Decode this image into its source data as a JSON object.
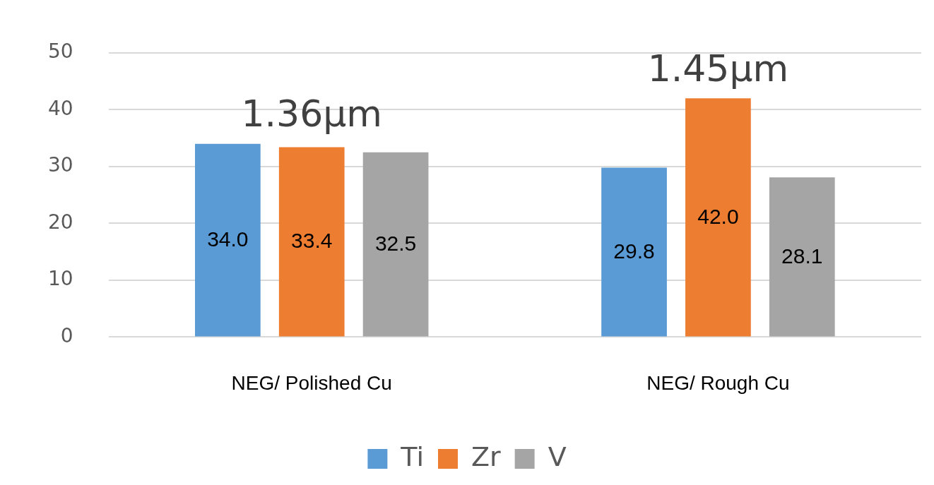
{
  "chart_data": {
    "type": "bar",
    "categories": [
      "NEG/ Polished Cu",
      "NEG/ Rough Cu"
    ],
    "series": [
      {
        "name": "Ti",
        "color": "#5b9bd5",
        "values": [
          34.0,
          29.8
        ],
        "value_labels": [
          "34.0",
          "29.8"
        ]
      },
      {
        "name": "Zr",
        "color": "#ed7d31",
        "values": [
          33.4,
          42.0
        ],
        "value_labels": [
          "33.4",
          "42.0"
        ]
      },
      {
        "name": "V",
        "color": "#a5a5a5",
        "values": [
          32.5,
          28.1
        ],
        "value_labels": [
          "32.5",
          "28.1"
        ]
      }
    ],
    "ylim": [
      0,
      50
    ],
    "yticks": [
      0,
      10,
      20,
      30,
      40,
      50
    ],
    "grid": "y",
    "legend": "bottom",
    "annotations": [
      "1.36µm",
      "1.45µm"
    ]
  }
}
